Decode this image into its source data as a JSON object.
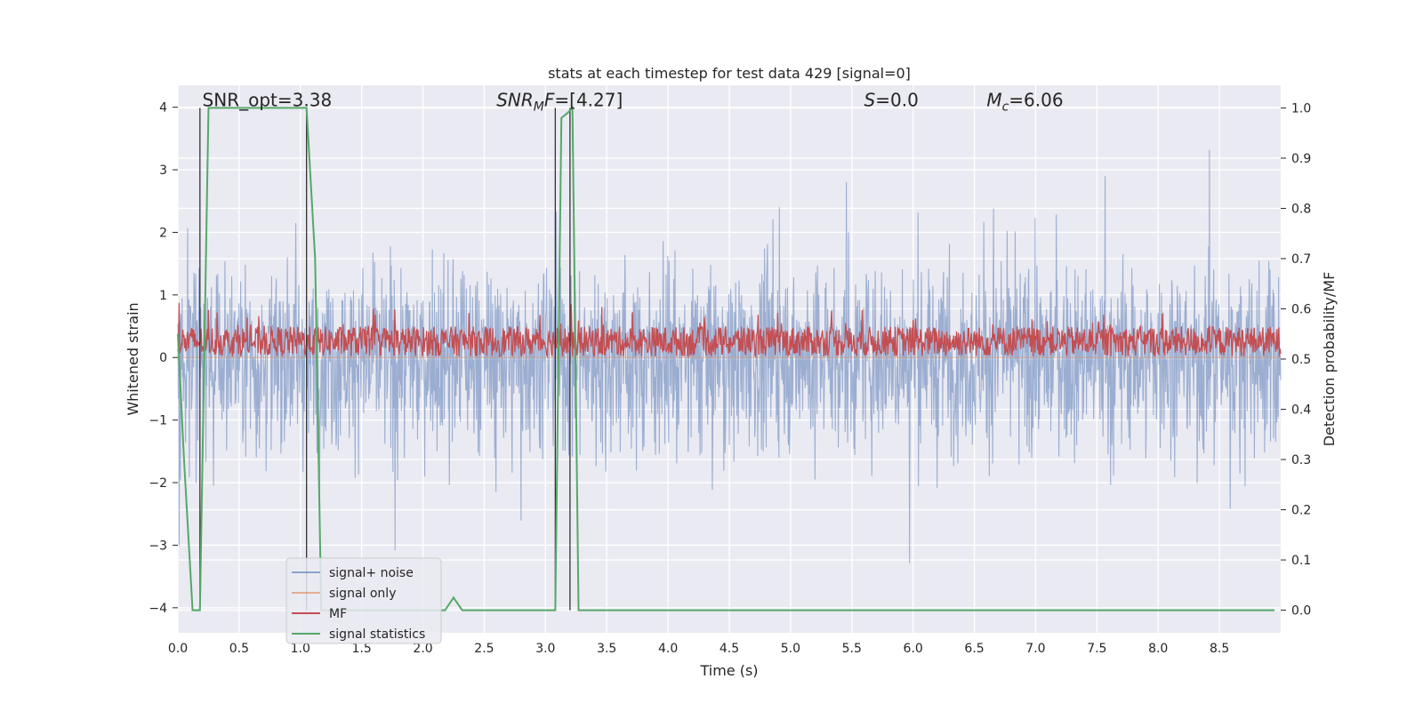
{
  "chart_data": {
    "type": "line",
    "title": "stats at each timestep for test data 429 [signal=0]",
    "xlabel": "Time (s)",
    "ylabel_left": "Whitened strain",
    "ylabel_right": "Detection probability/MF",
    "xlim": [
      0.0,
      9.0
    ],
    "ylim_left": [
      -4.4,
      4.35
    ],
    "ylim_right": [
      -0.045,
      1.045
    ],
    "grid": true,
    "x_ticks": [
      "0.0",
      "0.5",
      "1.0",
      "1.5",
      "2.0",
      "2.5",
      "3.0",
      "3.5",
      "4.0",
      "4.5",
      "5.0",
      "5.5",
      "6.0",
      "6.5",
      "7.0",
      "7.5",
      "8.0",
      "8.5"
    ],
    "x_tick_values": [
      0.0,
      0.5,
      1.0,
      1.5,
      2.0,
      2.5,
      3.0,
      3.5,
      4.0,
      4.5,
      5.0,
      5.5,
      6.0,
      6.5,
      7.0,
      7.5,
      8.0,
      8.5
    ],
    "y_left_ticks": [
      "4",
      "3",
      "2",
      "1",
      "0",
      "−1",
      "−2",
      "−3",
      "−4"
    ],
    "y_left_tick_values": [
      4,
      3,
      2,
      1,
      0,
      -1,
      -2,
      -3,
      -4
    ],
    "y_right_ticks": [
      "1.0",
      "0.9",
      "0.8",
      "0.7",
      "0.6",
      "0.5",
      "0.4",
      "0.3",
      "0.2",
      "0.1",
      "0.0"
    ],
    "y_right_tick_values": [
      1.0,
      0.9,
      0.8,
      0.7,
      0.6,
      0.5,
      0.4,
      0.3,
      0.2,
      0.1,
      0.0
    ],
    "annotations": [
      {
        "text": "SNR_opt=3.38",
        "x": 0.2,
        "y": 4.1
      },
      {
        "text": "SNR",
        "sub": "M",
        "suffix": "F=[4.27]",
        "italic": true,
        "x": 2.6,
        "y": 4.1
      },
      {
        "text": "S",
        "suffix": "=0.0",
        "italic": true,
        "x": 5.6,
        "y": 4.1
      },
      {
        "text": "M",
        "sub": "c",
        "suffix": "=6.06",
        "italic": true,
        "x": 6.6,
        "y": 4.1
      }
    ],
    "vlines": [
      0.18,
      1.05,
      3.08,
      3.2
    ],
    "legend_position": "lower-left",
    "series": [
      {
        "name": "signal+ noise",
        "color": "#4c72b0",
        "axis": "left",
        "kind": "noise",
        "amplitude_range": [
          -4.0,
          4.0
        ]
      },
      {
        "name": "signal only",
        "color": "#dd8452",
        "axis": "left",
        "kind": "flat",
        "values_const": 0
      },
      {
        "name": "MF",
        "color": "#c44e52",
        "axis": "right",
        "kind": "mf",
        "range": [
          0.5,
          0.62
        ]
      },
      {
        "name": "signal statistics",
        "color": "#55a868",
        "axis": "right",
        "kind": "steps",
        "x": [
          0.0,
          0.05,
          0.12,
          0.18,
          0.25,
          1.05,
          1.12,
          1.17,
          2.18,
          2.25,
          2.32,
          3.08,
          3.13,
          3.18,
          3.22,
          3.27,
          8.95
        ],
        "y": [
          0.55,
          0.3,
          0.0,
          0.0,
          1.0,
          1.0,
          0.7,
          0.0,
          0.0,
          0.025,
          0.0,
          0.0,
          0.98,
          0.99,
          1.0,
          0.0,
          0.0
        ]
      }
    ]
  }
}
